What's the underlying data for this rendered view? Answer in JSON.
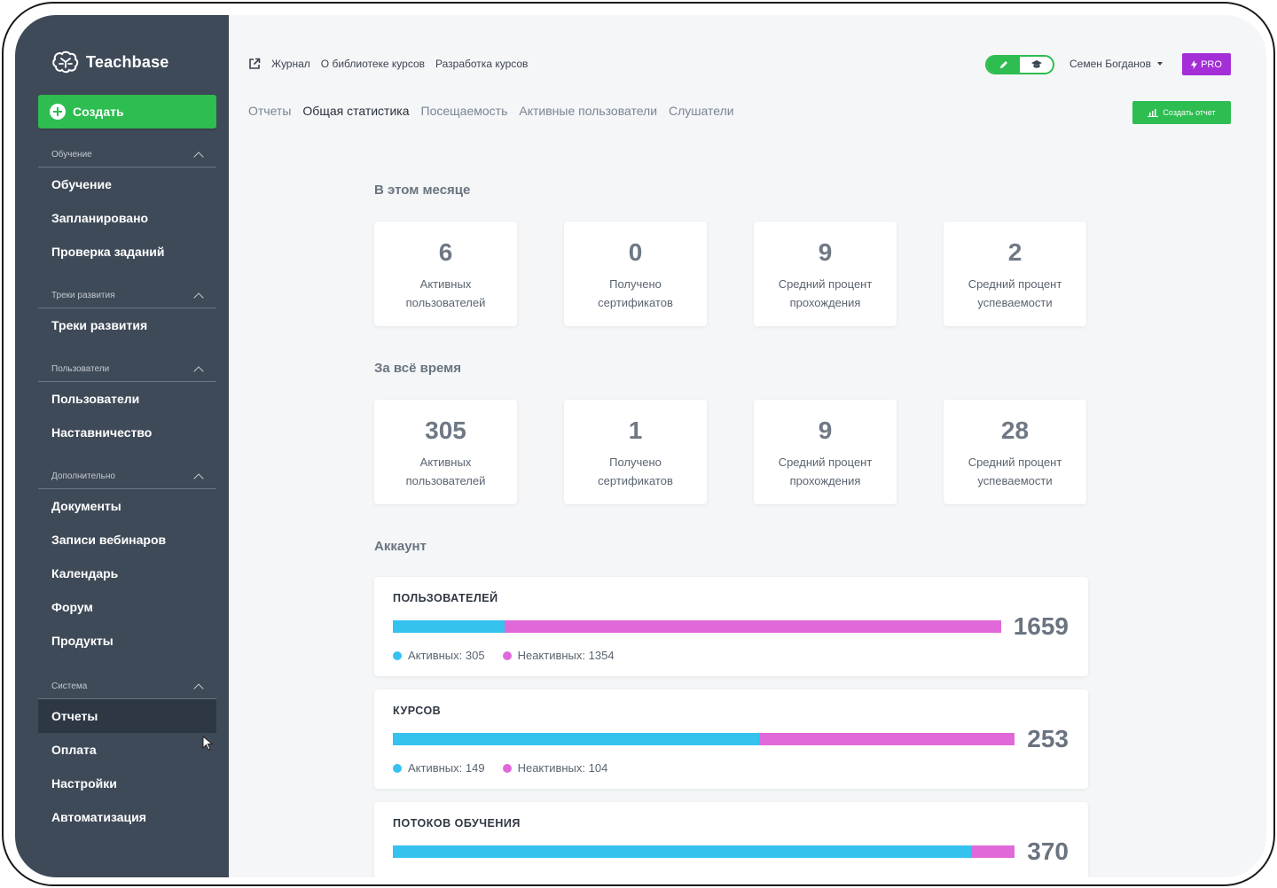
{
  "brand": {
    "name": "Teachbase"
  },
  "sidebar": {
    "create_label": "Создать",
    "sections": [
      {
        "title": "Обучение",
        "items": [
          "Обучение",
          "Запланировано",
          "Проверка заданий"
        ]
      },
      {
        "title": "Треки развития",
        "items": [
          "Треки развития"
        ]
      },
      {
        "title": "Пользователи",
        "items": [
          "Пользователи",
          "Наставничество"
        ]
      },
      {
        "title": "Дополнительно",
        "items": [
          "Документы",
          "Записи вебинаров",
          "Календарь",
          "Форум",
          "Продукты"
        ]
      },
      {
        "title": "Система",
        "items": [
          "Отчеты",
          "Оплата",
          "Настройки",
          "Автоматизация"
        ]
      }
    ],
    "active_item": "Отчеты"
  },
  "topbar": {
    "links": [
      "Журнал",
      "О библиотеке курсов",
      "Разработка курсов"
    ],
    "user_name": "Семен Богданов",
    "pro_label": "PRO"
  },
  "tabs": [
    "Отчеты",
    "Общая статистика",
    "Посещаемость",
    "Активные пользователи",
    "Слушатели"
  ],
  "active_tab": "Общая статистика",
  "report_button": "Создать отчет",
  "this_month": {
    "title": "В этом месяце",
    "cards": [
      {
        "value": "6",
        "label": "Активных пользователей"
      },
      {
        "value": "0",
        "label": "Получено сертификатов"
      },
      {
        "value": "9",
        "label": "Средний процент прохождения"
      },
      {
        "value": "2",
        "label": "Средний процент успеваемости"
      }
    ]
  },
  "all_time": {
    "title": "За всё время",
    "cards": [
      {
        "value": "305",
        "label": "Активных пользователей"
      },
      {
        "value": "1",
        "label": "Получено сертификатов"
      },
      {
        "value": "9",
        "label": "Средний процент прохождения"
      },
      {
        "value": "28",
        "label": "Средний процент успеваемости"
      }
    ]
  },
  "account": {
    "title": "Аккаунт",
    "cards": [
      {
        "title": "ПОЛЬЗОВАТЕЛЕЙ",
        "total": "1659",
        "active": 305,
        "inactive": 1354,
        "active_label": "Активных: 305",
        "inactive_label": "Неактивных: 1354"
      },
      {
        "title": "КУРСОВ",
        "total": "253",
        "active": 149,
        "inactive": 104,
        "active_label": "Активных: 149",
        "inactive_label": "Неактивных: 104"
      },
      {
        "title": "ПОТОКОВ ОБУЧЕНИЯ",
        "total": "370",
        "active": 344,
        "inactive": 26,
        "active_label": "",
        "inactive_label": ""
      }
    ]
  },
  "colors": {
    "active": "#35c2ee",
    "inactive": "#e168d9",
    "green": "#2dbd50",
    "purple": "#a42fd6",
    "sidebar": "#3f4a58"
  }
}
